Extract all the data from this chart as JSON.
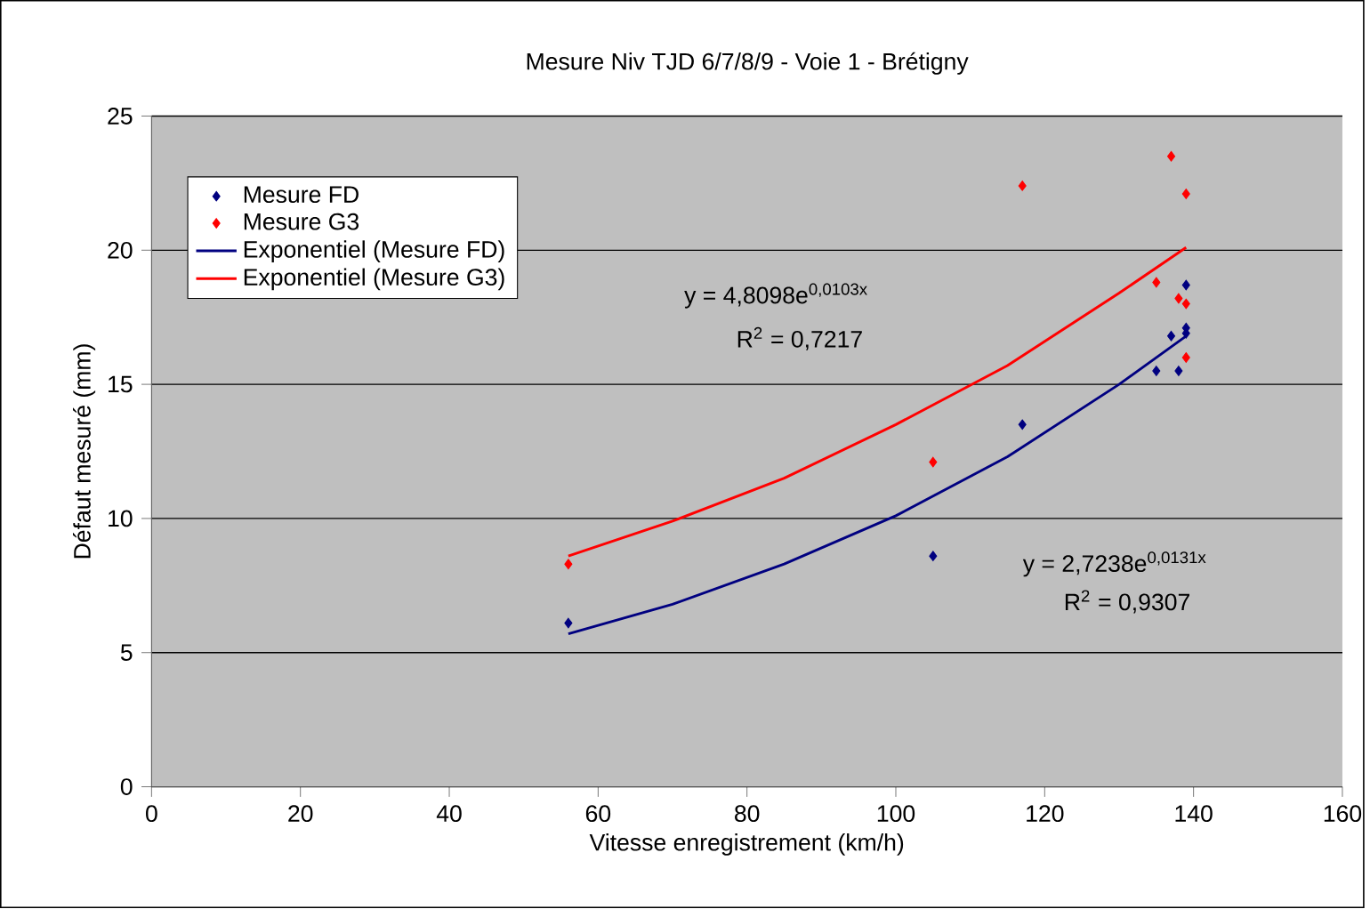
{
  "chart_data": {
    "type": "scatter",
    "title": "Mesure Niv TJD 6/7/8/9 - Voie 1 - Brétigny",
    "xlabel": "Vitesse enregistrement (km/h)",
    "ylabel": "Défaut mesuré (mm)",
    "xlim": [
      0,
      160
    ],
    "ylim": [
      0,
      25
    ],
    "xticks": [
      0,
      20,
      40,
      60,
      80,
      100,
      120,
      140,
      160
    ],
    "yticks": [
      0,
      5,
      10,
      15,
      20,
      25
    ],
    "grid": "y",
    "legend": "top left",
    "marker": "diamond",
    "series": [
      {
        "name": "Mesure FD",
        "color": "#000080",
        "x": [
          56,
          105,
          117,
          135,
          137,
          138,
          139,
          139,
          139
        ],
        "values": [
          6.1,
          8.6,
          13.5,
          15.5,
          16.8,
          15.5,
          18.7,
          17.1,
          16.9
        ]
      },
      {
        "name": "Mesure G3",
        "color": "#ff0000",
        "x": [
          56,
          105,
          117,
          135,
          137,
          138,
          139,
          139,
          139
        ],
        "values": [
          8.3,
          12.1,
          22.4,
          18.8,
          23.5,
          18.2,
          22.1,
          18.0,
          16.0
        ]
      },
      {
        "name": "Exponentiel (Mesure FD)",
        "type": "line",
        "marker": "none",
        "color": "#000080",
        "x": [
          56,
          70,
          85,
          100,
          115,
          130,
          139
        ],
        "values": [
          5.7,
          6.8,
          8.3,
          10.1,
          12.3,
          15.0,
          16.8
        ]
      },
      {
        "name": "Exponentiel (Mesure G3)",
        "type": "line",
        "marker": "none",
        "color": "#ff0000",
        "x": [
          56,
          70,
          85,
          100,
          115,
          130,
          139
        ],
        "values": [
          8.6,
          9.9,
          11.5,
          13.5,
          15.7,
          18.4,
          20.1
        ]
      }
    ],
    "annotations": [
      "y = 4,8098e$^{0,0103x}$",
      "R$^{2}$ = 0,7217",
      "y = 2,7238e$^{0,0131x}$",
      "R$^{2}$ = 0,9307"
    ]
  }
}
